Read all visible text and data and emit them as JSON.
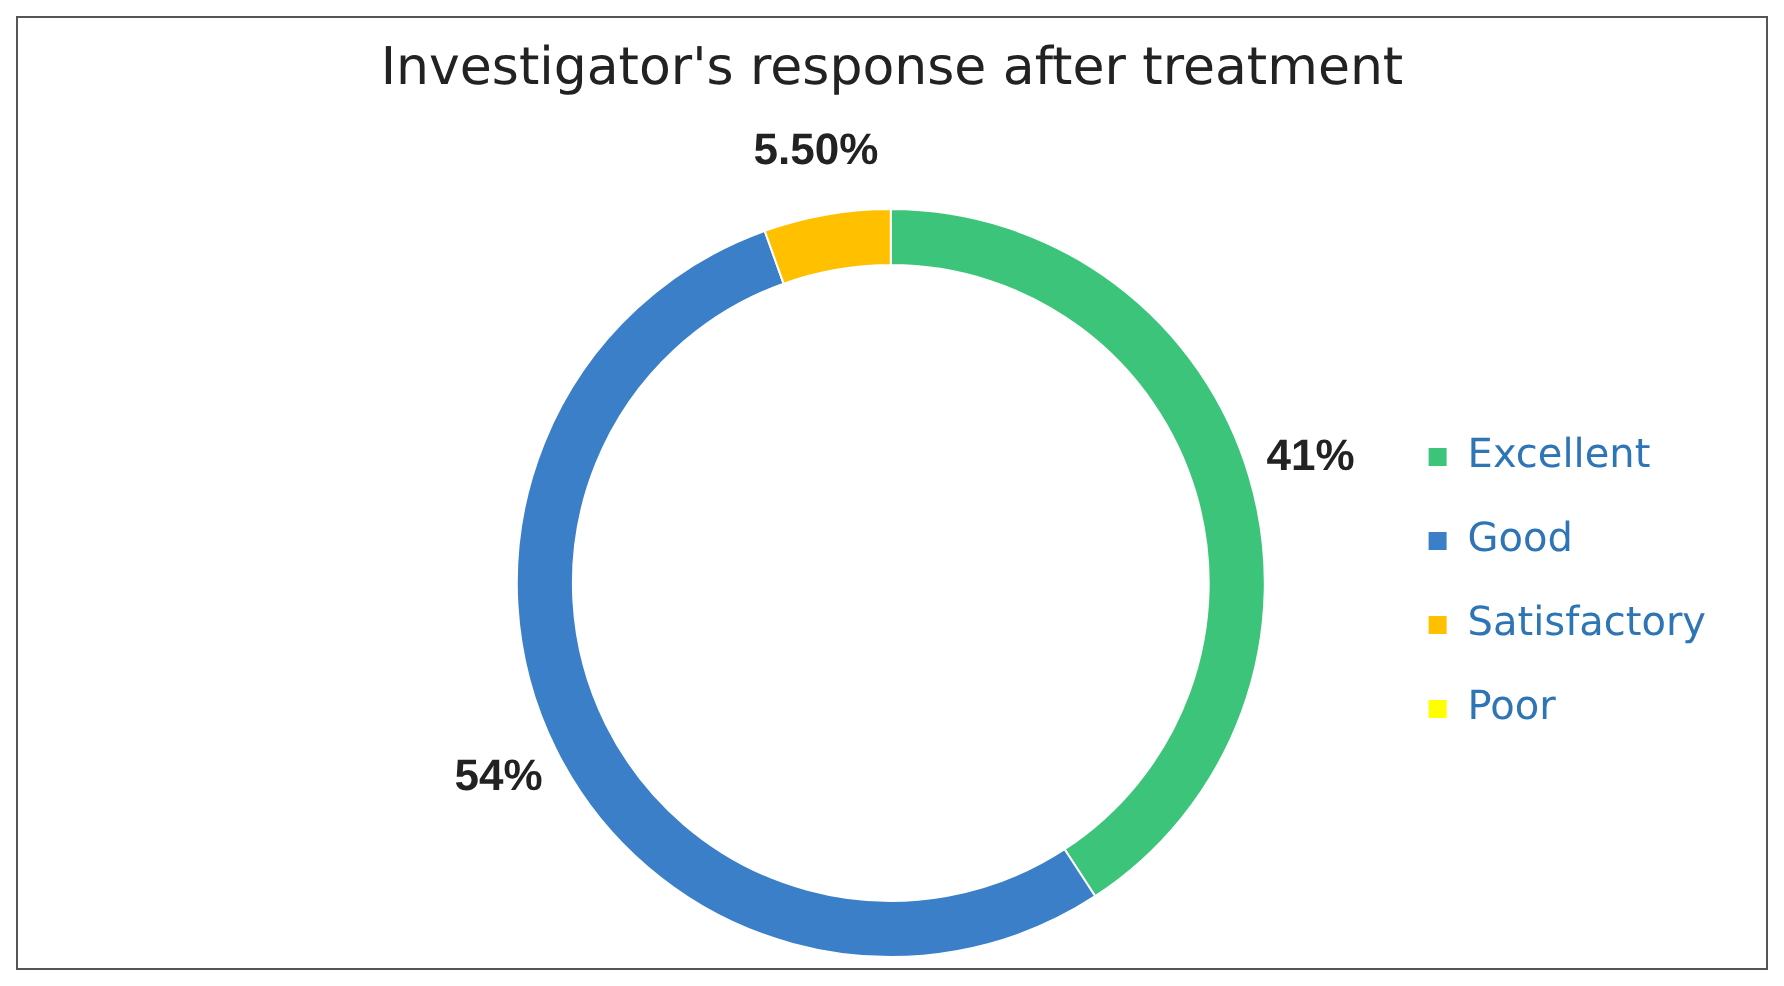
{
  "chart_data": {
    "type": "donut",
    "title": "Investigator's response after treatment",
    "categories": [
      "Excellent",
      "Good",
      "Satisfactory",
      "Poor"
    ],
    "values": [
      41,
      54,
      5.5,
      0
    ],
    "colors": [
      "#3cc47a",
      "#3a7fc8",
      "#ffc000",
      "#ffff00"
    ],
    "value_labels": [
      "41%",
      "54%",
      "5.50%",
      null
    ],
    "legend": "right"
  }
}
